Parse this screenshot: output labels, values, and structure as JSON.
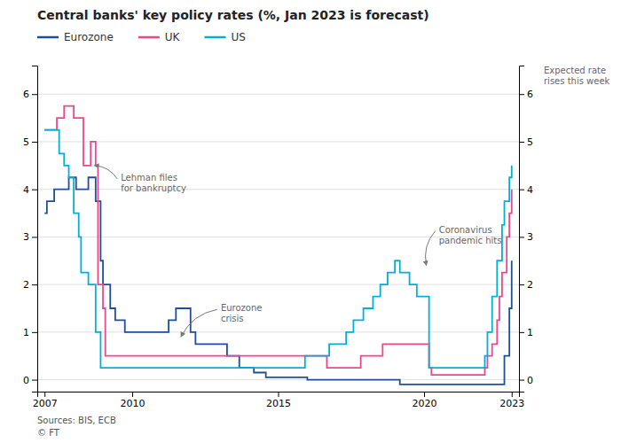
{
  "chart_data": {
    "type": "step",
    "title": "Central banks' key policy rates (%, Jan 2023 is forecast)",
    "xlim": [
      2006.75,
      2023.25
    ],
    "xticks": [
      2007,
      2010,
      2015,
      2020,
      2023
    ],
    "ylim": [
      -0.25,
      6.6
    ],
    "yticks": [
      0,
      1,
      2,
      3,
      4,
      5,
      6
    ],
    "grid": "y",
    "legend": "top",
    "series": [
      {
        "name": "Eurozone",
        "color": "#1f4e9e",
        "x": [
          2007.0,
          2007.08,
          2007.33,
          2007.58,
          2007.83,
          2008.0,
          2008.08,
          2008.5,
          2008.75,
          2008.92,
          2009.0,
          2009.25,
          2009.42,
          2009.75,
          2010.0,
          2010.92,
          2011.0,
          2011.25,
          2011.5,
          2011.83,
          2012.0,
          2012.17,
          2012.58,
          2012.92,
          2013.0,
          2013.25,
          2013.67,
          2013.92,
          2014.0,
          2014.17,
          2014.58,
          2014.75,
          2015.0,
          2016.0,
          2019.0,
          2019.17,
          2022.58,
          2022.75,
          2022.92,
          2023.0
        ],
        "values": [
          3.5,
          3.75,
          4.0,
          4.0,
          4.25,
          4.25,
          4.0,
          4.25,
          3.75,
          2.5,
          2.0,
          1.5,
          1.25,
          1.0,
          1.0,
          1.0,
          1.0,
          1.25,
          1.5,
          1.5,
          1.0,
          0.75,
          0.75,
          0.75,
          0.75,
          0.5,
          0.25,
          0.25,
          0.25,
          0.15,
          0.05,
          0.05,
          0.05,
          0.0,
          0.0,
          -0.1,
          -0.1,
          0.5,
          1.5,
          2.5
        ]
      },
      {
        "name": "UK",
        "color": "#f0478a",
        "x": [
          2007.0,
          2007.42,
          2007.67,
          2007.83,
          2008.0,
          2008.33,
          2008.58,
          2008.75,
          2008.83,
          2009.0,
          2009.08,
          2009.25,
          2016.42,
          2016.67,
          2017.0,
          2017.08,
          2017.83,
          2018.08,
          2018.58,
          2019.0,
          2019.67,
          2020.0,
          2020.17,
          2020.25,
          2021.92,
          2022.0,
          2022.08,
          2022.17,
          2022.33,
          2022.5,
          2022.58,
          2022.67,
          2022.75,
          2022.83,
          2022.92,
          2023.0
        ],
        "values": [
          5.25,
          5.5,
          5.75,
          5.75,
          5.5,
          4.5,
          5.0,
          4.5,
          2.0,
          1.5,
          0.5,
          0.5,
          0.5,
          0.25,
          0.25,
          0.25,
          0.5,
          0.5,
          0.75,
          0.75,
          0.75,
          0.75,
          0.25,
          0.1,
          0.1,
          0.1,
          0.25,
          0.5,
          0.75,
          1.25,
          1.75,
          2.25,
          2.25,
          3.0,
          3.5,
          4.0
        ]
      },
      {
        "name": "US",
        "color": "#00b0d8",
        "x": [
          2007.0,
          2007.5,
          2007.67,
          2007.83,
          2008.0,
          2008.17,
          2008.25,
          2008.33,
          2008.5,
          2008.75,
          2008.92,
          2009.0,
          2015.83,
          2015.92,
          2016.0,
          2016.75,
          2017.08,
          2017.33,
          2017.58,
          2017.92,
          2018.08,
          2018.25,
          2018.5,
          2018.75,
          2019.0,
          2019.17,
          2019.5,
          2019.75,
          2020.0,
          2020.17,
          2020.25,
          2022.0,
          2022.08,
          2022.17,
          2022.33,
          2022.5,
          2022.67,
          2022.75,
          2022.92,
          2023.0
        ],
        "values": [
          5.25,
          4.75,
          4.5,
          4.25,
          3.5,
          3.0,
          2.25,
          2.25,
          2.0,
          1.0,
          0.25,
          0.25,
          0.25,
          0.5,
          0.5,
          0.75,
          0.75,
          1.0,
          1.25,
          1.5,
          1.5,
          1.75,
          2.0,
          2.25,
          2.5,
          2.25,
          2.0,
          1.75,
          1.75,
          0.25,
          0.25,
          0.25,
          0.5,
          1.0,
          1.75,
          2.5,
          3.25,
          3.75,
          4.25,
          4.5
        ]
      }
    ],
    "annotations": [
      {
        "text": "Lehman files\nfor bankruptcy",
        "x": 2008.7,
        "y": 4.5
      },
      {
        "text": "Eurozone\ncrisis",
        "x": 2011.67,
        "y": 0.9
      },
      {
        "text": "Coronavirus\npandemic hits",
        "x": 2020.08,
        "y": 2.4
      },
      {
        "text": "Expected rate\nrises this week"
      }
    ],
    "source": [
      "Sources: BIS, ECB",
      "© FT"
    ]
  }
}
